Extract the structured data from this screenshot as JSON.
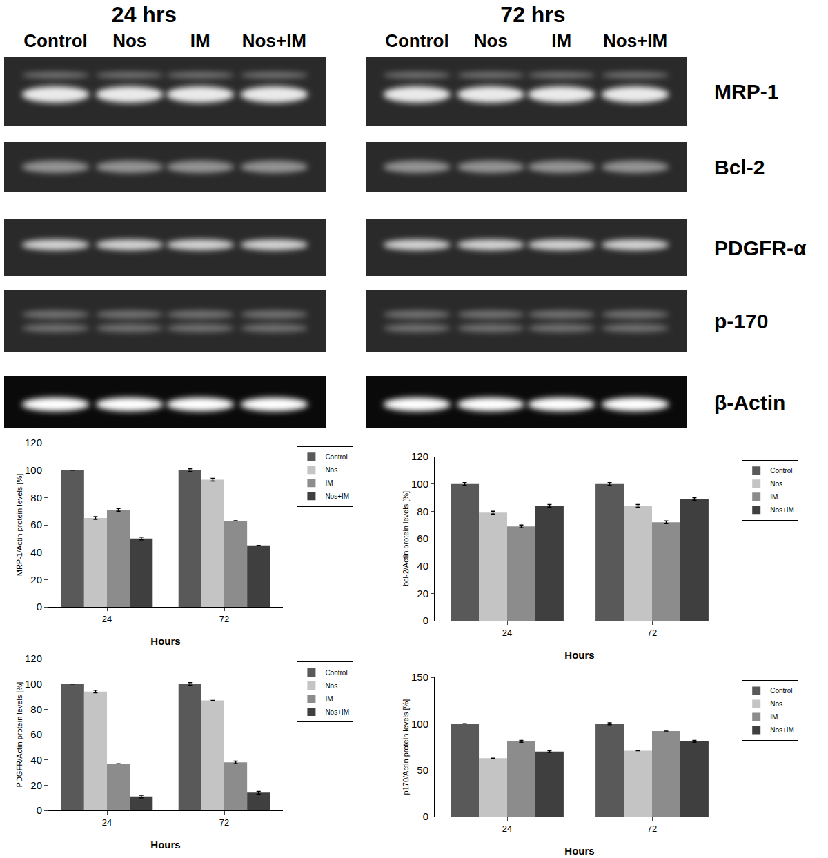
{
  "blots": {
    "panels": [
      {
        "title": "24 hrs",
        "lanes": [
          "Control",
          "Nos",
          "IM",
          "Nos+IM"
        ]
      },
      {
        "title": "72 hrs",
        "lanes": [
          "Control",
          "Nos",
          "IM",
          "Nos+IM"
        ]
      }
    ],
    "proteins": [
      "MRP-1",
      "Bcl-2",
      "PDGFR-α",
      "p-170",
      "β-Actin"
    ]
  },
  "chart_data": [
    {
      "type": "bar",
      "categories": [
        "24",
        "72"
      ],
      "x_label": "Hours",
      "y_label": "MRP-1/Actin protein levels [%]",
      "ylim": [
        0,
        120
      ],
      "yticks": [
        0,
        20,
        40,
        60,
        80,
        100,
        120
      ],
      "grid": false,
      "legend": "right",
      "series": [
        {
          "name": "Control",
          "color": "#595959",
          "values": [
            100,
            100
          ],
          "errors": [
            0,
            1
          ]
        },
        {
          "name": "Nos",
          "color": "#c4c4c4",
          "values": [
            65,
            93
          ],
          "errors": [
            1,
            1
          ]
        },
        {
          "name": "IM",
          "color": "#8c8c8c",
          "values": [
            71,
            63
          ],
          "errors": [
            1,
            0
          ]
        },
        {
          "name": "Nos+IM",
          "color": "#3f3f3f",
          "values": [
            50,
            45
          ],
          "errors": [
            1,
            0
          ]
        }
      ]
    },
    {
      "type": "bar",
      "categories": [
        "24",
        "72"
      ],
      "x_label": "Hours",
      "y_label": "bcl-2/Actin protein levels [%]",
      "ylim": [
        0,
        120
      ],
      "yticks": [
        0,
        20,
        40,
        60,
        80,
        100,
        120
      ],
      "grid": false,
      "legend": "right",
      "series": [
        {
          "name": "Control",
          "color": "#595959",
          "values": [
            100,
            100
          ],
          "errors": [
            1,
            1
          ]
        },
        {
          "name": "Nos",
          "color": "#c4c4c4",
          "values": [
            79,
            84
          ],
          "errors": [
            1,
            1
          ]
        },
        {
          "name": "IM",
          "color": "#8c8c8c",
          "values": [
            69,
            72
          ],
          "errors": [
            1,
            1
          ]
        },
        {
          "name": "Nos+IM",
          "color": "#3f3f3f",
          "values": [
            84,
            89
          ],
          "errors": [
            1,
            1
          ]
        }
      ]
    },
    {
      "type": "bar",
      "categories": [
        "24",
        "72"
      ],
      "x_label": "Hours",
      "y_label": "PDGFR/Actin protein levels [%]",
      "ylim": [
        0,
        120
      ],
      "yticks": [
        0,
        20,
        40,
        60,
        80,
        100,
        120
      ],
      "grid": false,
      "legend": "right",
      "series": [
        {
          "name": "Control",
          "color": "#595959",
          "values": [
            100,
            100
          ],
          "errors": [
            0,
            1
          ]
        },
        {
          "name": "Nos",
          "color": "#c4c4c4",
          "values": [
            94,
            87
          ],
          "errors": [
            1,
            0
          ]
        },
        {
          "name": "IM",
          "color": "#8c8c8c",
          "values": [
            37,
            38
          ],
          "errors": [
            0,
            1
          ]
        },
        {
          "name": "Nos+IM",
          "color": "#3f3f3f",
          "values": [
            11,
            14
          ],
          "errors": [
            1,
            1
          ]
        }
      ]
    },
    {
      "type": "bar",
      "categories": [
        "24",
        "72"
      ],
      "x_label": "Hours",
      "y_label": "p170/Actin protein levels [%]",
      "ylim": [
        0,
        150
      ],
      "yticks": [
        0,
        50,
        100,
        150
      ],
      "grid": false,
      "legend": "right",
      "series": [
        {
          "name": "Control",
          "color": "#595959",
          "values": [
            100,
            100
          ],
          "errors": [
            0,
            1
          ]
        },
        {
          "name": "Nos",
          "color": "#c4c4c4",
          "values": [
            63,
            71
          ],
          "errors": [
            0,
            0
          ]
        },
        {
          "name": "IM",
          "color": "#8c8c8c",
          "values": [
            81,
            92
          ],
          "errors": [
            1,
            0
          ]
        },
        {
          "name": "Nos+IM",
          "color": "#3f3f3f",
          "values": [
            70,
            81
          ],
          "errors": [
            1,
            1
          ]
        }
      ]
    }
  ]
}
